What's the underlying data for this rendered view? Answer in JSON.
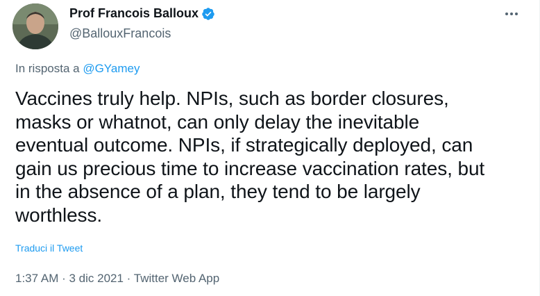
{
  "author": {
    "display_name": "Prof Francois Balloux",
    "handle": "@BallouxFrancois",
    "verified": true
  },
  "reply": {
    "prefix": "In risposta a ",
    "mention": "@GYamey"
  },
  "tweet": {
    "text": "Vaccines truly help. NPIs, such as border closures,\nmasks or whatnot, can only delay the inevitable\neventual outcome. NPIs, if strategically deployed, can\ngain us precious time to increase vaccination rates, but\nin the absence of a plan, they tend to be largely\nworthless.",
    "translate_label": "Traduci il Tweet"
  },
  "meta": {
    "time": "1:37 AM",
    "separator1": " · ",
    "date": "3 dic 2021",
    "separator2": " · ",
    "source": "Twitter Web App"
  },
  "colors": {
    "accent": "#1d9bf0",
    "secondary_text": "#536471",
    "primary_text": "#0f1419"
  },
  "icons": {
    "verified": "verified-badge-icon",
    "more": "more-options-icon"
  }
}
